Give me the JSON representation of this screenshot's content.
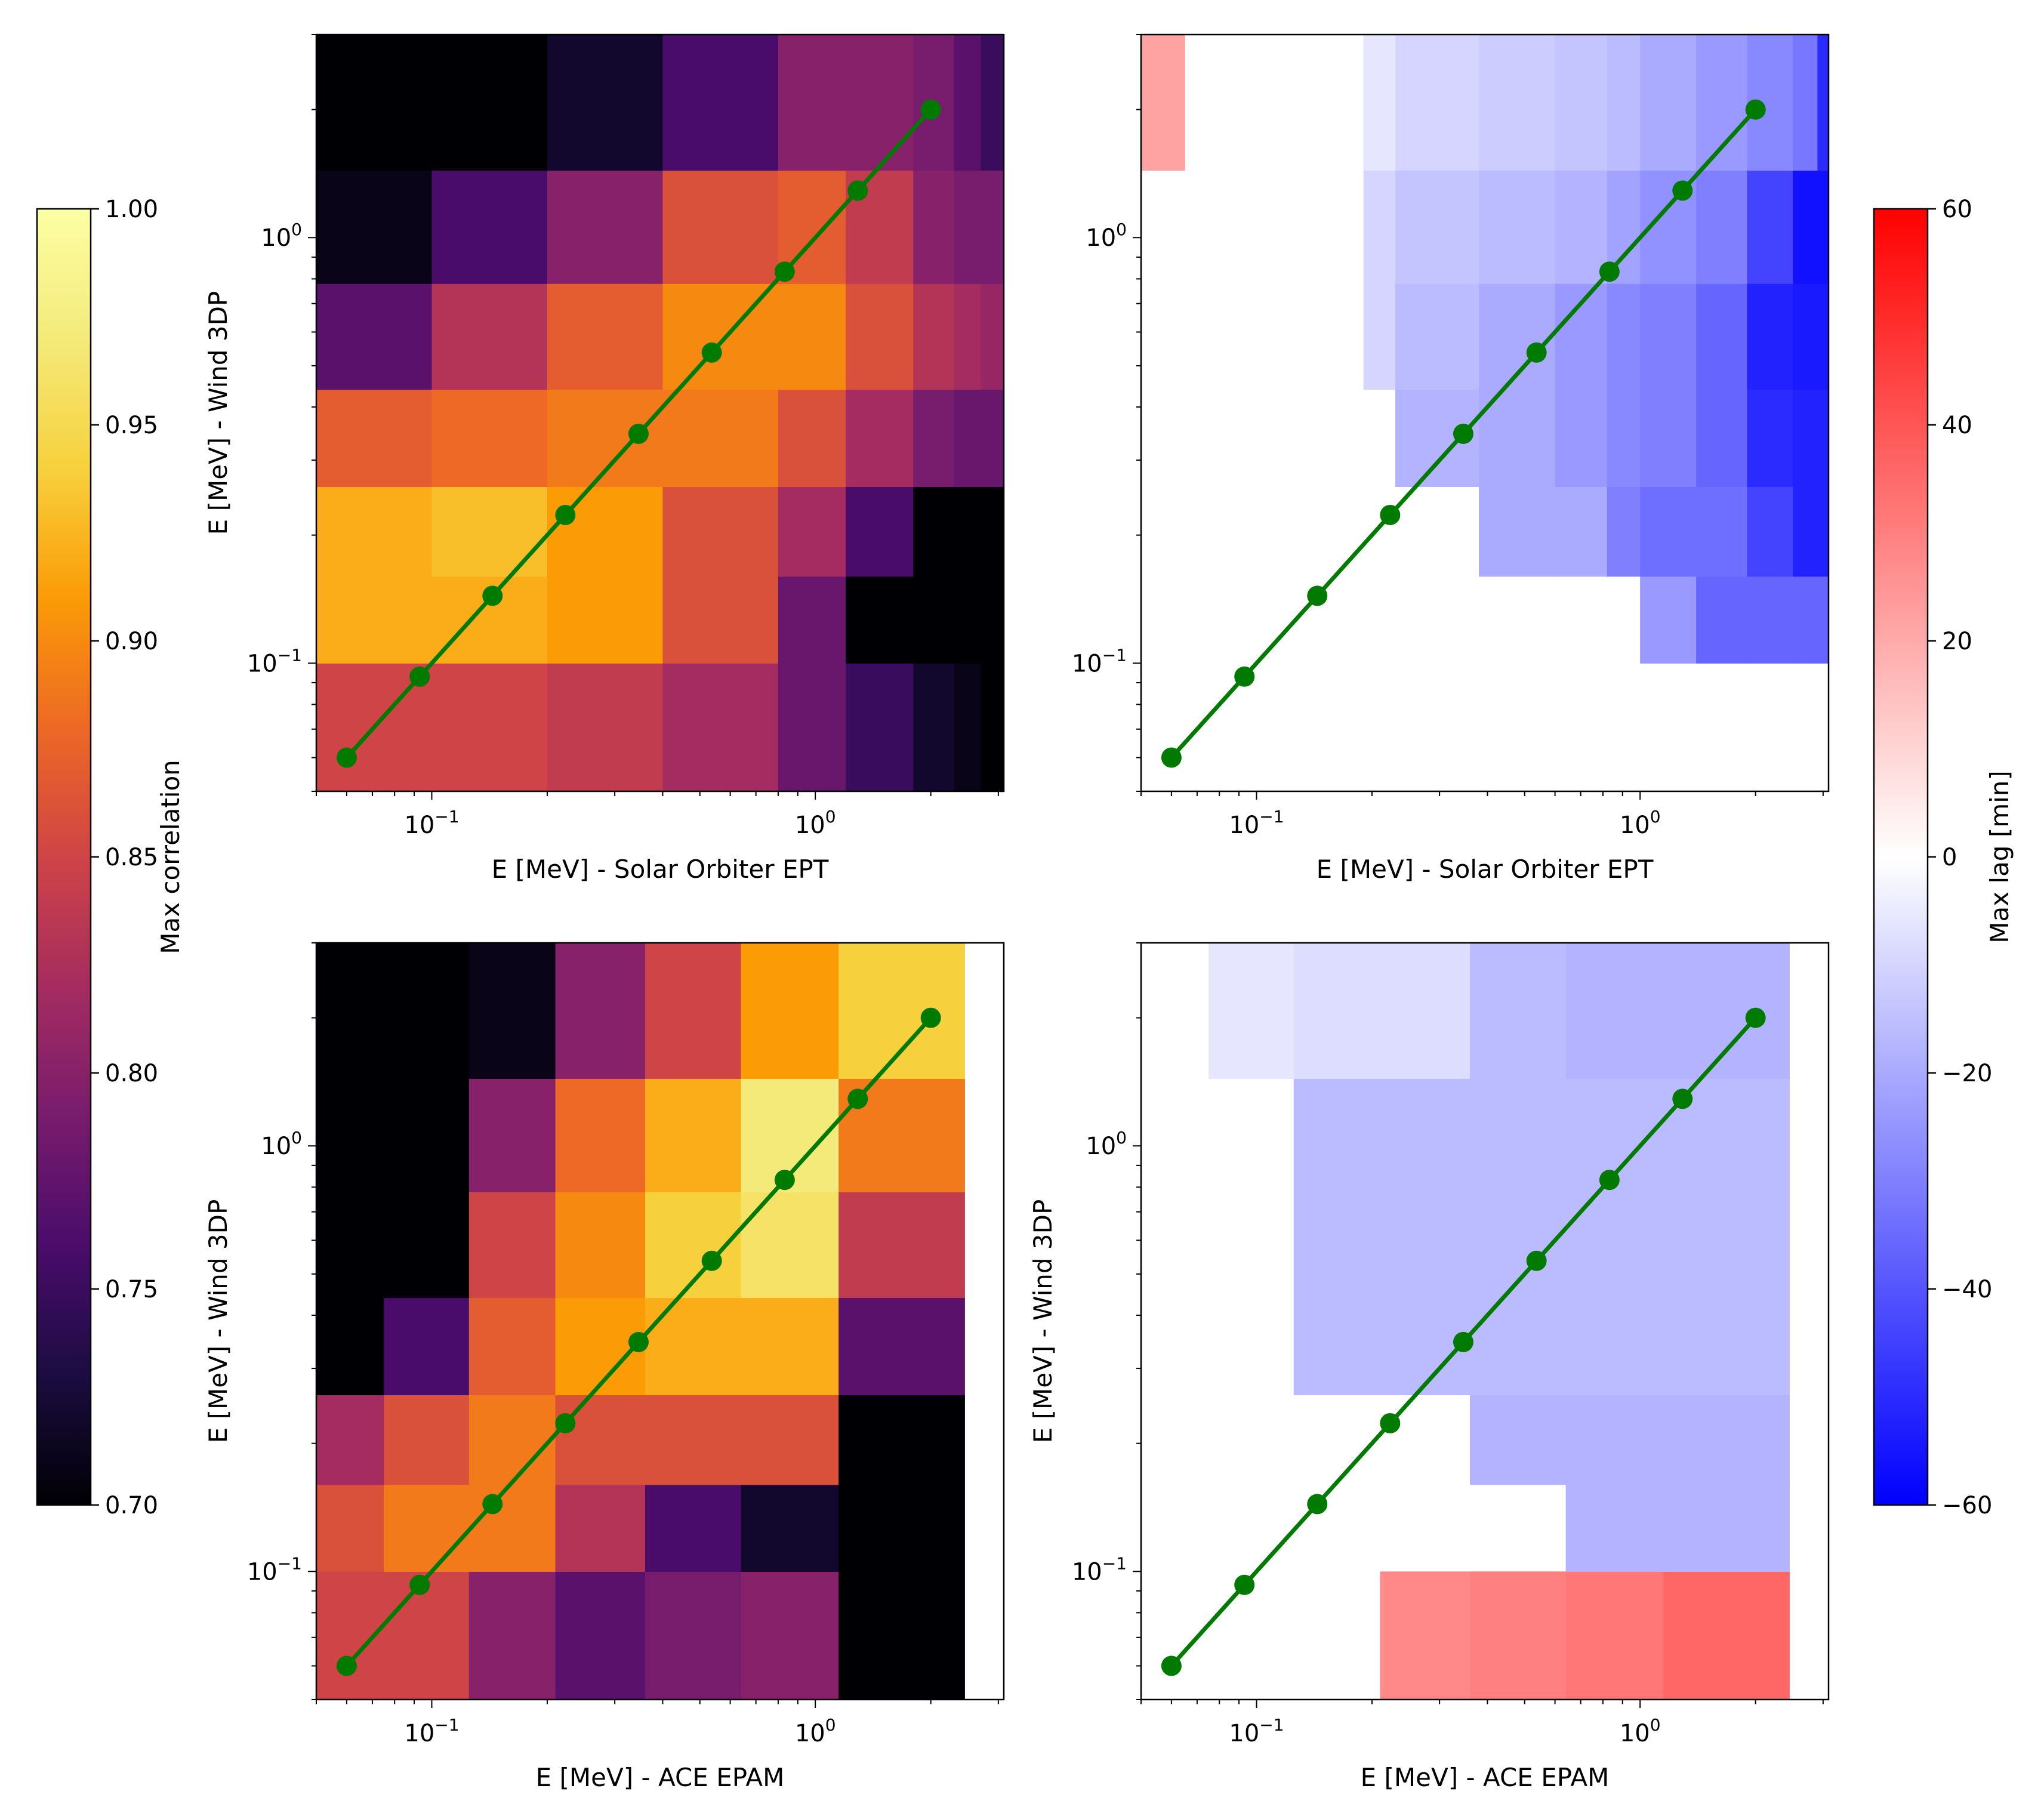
{
  "colorbars": {
    "correlation": {
      "label": "Max correlation",
      "range": [
        0.7,
        1.0
      ],
      "ticks": [
        "0.70",
        "0.75",
        "0.80",
        "0.85",
        "0.90",
        "0.95",
        "1.00"
      ],
      "colormap": "inferno"
    },
    "lag": {
      "label": "Max lag [min]",
      "range": [
        -60,
        60
      ],
      "ticks": [
        "−60",
        "−40",
        "−20",
        "0",
        "20",
        "40",
        "60"
      ],
      "colormap": "bwr"
    }
  },
  "chart_data": [
    {
      "type": "heatmap",
      "panel": "top-left",
      "colorbar": "correlation",
      "xlabel": "E [MeV] - Solar Orbiter EPT",
      "ylabel": "E [MeV] - Wind 3DP",
      "xscale": "log",
      "yscale": "log",
      "xlim": [
        0.05,
        3.1
      ],
      "ylim": [
        0.05,
        3.0
      ],
      "xtick_labels": [
        {
          "v": 0.1,
          "t": "10",
          "e": "−1"
        },
        {
          "v": 1,
          "t": "10",
          "e": "0"
        }
      ],
      "ytick_labels": [
        {
          "v": 0.1,
          "t": "10",
          "e": "−1"
        },
        {
          "v": 1,
          "t": "10",
          "e": "0"
        }
      ],
      "x_edges": [
        0.05,
        0.1,
        0.2,
        0.4,
        0.8,
        1.2,
        1.8,
        2.3,
        2.7,
        3.1
      ],
      "y_edges": [
        0.05,
        0.1,
        0.16,
        0.26,
        0.44,
        0.78,
        1.44,
        3.0
      ],
      "values": [
        [
          0.85,
          0.85,
          0.84,
          0.82,
          0.78,
          0.75,
          0.72,
          0.71,
          0.7
        ],
        [
          0.92,
          0.92,
          0.91,
          0.86,
          0.78,
          0.7,
          0.7,
          0.7,
          0.7
        ],
        [
          0.92,
          0.93,
          0.91,
          0.86,
          0.82,
          0.76,
          0.7,
          0.7,
          0.7
        ],
        [
          0.87,
          0.88,
          0.89,
          0.89,
          0.86,
          0.82,
          0.79,
          0.78,
          0.78
        ],
        [
          0.77,
          0.83,
          0.87,
          0.9,
          0.9,
          0.86,
          0.83,
          0.82,
          0.81
        ],
        [
          0.71,
          0.76,
          0.8,
          0.86,
          0.87,
          0.84,
          0.8,
          0.79,
          0.79
        ],
        [
          0.7,
          0.7,
          0.72,
          0.76,
          0.8,
          0.8,
          0.79,
          0.77,
          0.75
        ]
      ],
      "line": {
        "x": [
          0.06,
          0.093,
          0.144,
          0.223,
          0.346,
          0.537,
          0.832,
          1.29,
          2.0
        ],
        "y": [
          0.06,
          0.093,
          0.144,
          0.223,
          0.346,
          0.537,
          0.832,
          1.29,
          2.0
        ],
        "color": "#007a00"
      }
    },
    {
      "type": "heatmap",
      "panel": "top-right",
      "colorbar": "lag",
      "xlabel": "E [MeV] - Solar Orbiter EPT",
      "ylabel": "",
      "xscale": "log",
      "yscale": "log",
      "xlim": [
        0.05,
        3.1
      ],
      "ylim": [
        0.05,
        3.0
      ],
      "xtick_labels": [
        {
          "v": 0.1,
          "t": "10",
          "e": "−1"
        },
        {
          "v": 1,
          "t": "10",
          "e": "0"
        }
      ],
      "ytick_labels": [
        {
          "v": 0.1,
          "t": "10",
          "e": "−1"
        },
        {
          "v": 1,
          "t": "10",
          "e": "0"
        }
      ],
      "x_edges": [
        0.05,
        0.065,
        0.15,
        0.19,
        0.23,
        0.38,
        0.6,
        0.82,
        1.0,
        1.4,
        1.9,
        2.5,
        2.9,
        3.1
      ],
      "y_edges": [
        0.05,
        0.1,
        0.16,
        0.26,
        0.44,
        0.78,
        1.44,
        3.0
      ],
      "values": [
        [
          null,
          null,
          null,
          null,
          null,
          null,
          null,
          null,
          null,
          null,
          null,
          null,
          null
        ],
        [
          null,
          null,
          null,
          null,
          null,
          null,
          null,
          null,
          -24,
          -36,
          -36,
          -36,
          -36
        ],
        [
          null,
          null,
          null,
          null,
          null,
          -20,
          -20,
          -30,
          -34,
          -34,
          -44,
          -52,
          -52
        ],
        [
          null,
          null,
          null,
          null,
          -18,
          -20,
          -24,
          -28,
          -30,
          -36,
          -50,
          -52,
          -52
        ],
        [
          null,
          null,
          null,
          -10,
          -16,
          -20,
          -24,
          -28,
          -30,
          -36,
          -52,
          -54,
          -54
        ],
        [
          null,
          null,
          null,
          -10,
          -14,
          -16,
          -18,
          -22,
          -26,
          -30,
          -44,
          -56,
          -56
        ],
        [
          22,
          null,
          null,
          -6,
          -10,
          -12,
          -14,
          -16,
          -20,
          -24,
          -28,
          -32,
          -50
        ]
      ],
      "line": {
        "x": [
          0.06,
          0.093,
          0.144,
          0.223,
          0.346,
          0.537,
          0.832,
          1.29,
          2.0
        ],
        "y": [
          0.06,
          0.093,
          0.144,
          0.223,
          0.346,
          0.537,
          0.832,
          1.29,
          2.0
        ],
        "color": "#007a00"
      }
    },
    {
      "type": "heatmap",
      "panel": "bottom-left",
      "colorbar": "correlation",
      "xlabel": "E [MeV] - ACE EPAM",
      "ylabel": "E [MeV] - Wind 3DP",
      "xscale": "log",
      "yscale": "log",
      "xlim": [
        0.05,
        3.1
      ],
      "ylim": [
        0.05,
        3.0
      ],
      "xtick_labels": [
        {
          "v": 0.1,
          "t": "10",
          "e": "−1"
        },
        {
          "v": 1,
          "t": "10",
          "e": "0"
        }
      ],
      "ytick_labels": [
        {
          "v": 0.1,
          "t": "10",
          "e": "−1"
        },
        {
          "v": 1,
          "t": "10",
          "e": "0"
        }
      ],
      "x_edges": [
        0.05,
        0.075,
        0.125,
        0.21,
        0.36,
        0.64,
        1.15,
        2.45
      ],
      "y_edges": [
        0.05,
        0.1,
        0.16,
        0.26,
        0.44,
        0.78,
        1.44,
        3.0
      ],
      "values": [
        [
          0.85,
          0.85,
          0.8,
          0.77,
          0.79,
          0.8,
          0.7
        ],
        [
          0.86,
          0.89,
          0.89,
          0.83,
          0.76,
          0.72,
          0.7
        ],
        [
          0.82,
          0.86,
          0.89,
          0.86,
          0.86,
          0.86,
          0.7
        ],
        [
          0.7,
          0.76,
          0.87,
          0.91,
          0.92,
          0.92,
          0.77
        ],
        [
          0.7,
          0.7,
          0.85,
          0.9,
          0.94,
          0.96,
          0.84
        ],
        [
          0.7,
          0.7,
          0.8,
          0.88,
          0.92,
          0.97,
          0.89
        ],
        [
          0.7,
          0.7,
          0.71,
          0.8,
          0.85,
          0.91,
          0.94
        ]
      ],
      "line": {
        "x": [
          0.06,
          0.093,
          0.144,
          0.223,
          0.346,
          0.537,
          0.832,
          1.29,
          2.0
        ],
        "y": [
          0.06,
          0.093,
          0.144,
          0.223,
          0.346,
          0.537,
          0.832,
          1.29,
          2.0
        ],
        "color": "#007a00"
      }
    },
    {
      "type": "heatmap",
      "panel": "bottom-right",
      "colorbar": "lag",
      "xlabel": "E [MeV] - ACE EPAM",
      "ylabel": "E [MeV] - Wind 3DP",
      "xscale": "log",
      "yscale": "log",
      "xlim": [
        0.05,
        3.1
      ],
      "ylim": [
        0.05,
        3.0
      ],
      "xtick_labels": [
        {
          "v": 0.1,
          "t": "10",
          "e": "−1"
        },
        {
          "v": 1,
          "t": "10",
          "e": "0"
        }
      ],
      "ytick_labels": [
        {
          "v": 0.1,
          "t": "10",
          "e": "−1"
        },
        {
          "v": 1,
          "t": "10",
          "e": "0"
        }
      ],
      "x_edges": [
        0.05,
        0.075,
        0.125,
        0.21,
        0.36,
        0.64,
        1.15,
        2.45
      ],
      "y_edges": [
        0.05,
        0.1,
        0.16,
        0.26,
        0.44,
        0.78,
        1.44,
        3.0
      ],
      "values": [
        [
          null,
          null,
          null,
          28,
          30,
          32,
          36
        ],
        [
          null,
          null,
          null,
          null,
          null,
          -18,
          -18
        ],
        [
          null,
          null,
          null,
          null,
          -18,
          -18,
          -18
        ],
        [
          null,
          null,
          -16,
          -16,
          -16,
          -16,
          -16
        ],
        [
          null,
          null,
          -16,
          -16,
          -16,
          -16,
          -16
        ],
        [
          null,
          null,
          -16,
          -16,
          -16,
          -16,
          -16
        ],
        [
          null,
          -6,
          -8,
          -8,
          -16,
          -18,
          -18
        ]
      ],
      "line": {
        "x": [
          0.06,
          0.093,
          0.144,
          0.223,
          0.346,
          0.537,
          0.832,
          1.29,
          2.0
        ],
        "y": [
          0.06,
          0.093,
          0.144,
          0.223,
          0.346,
          0.537,
          0.832,
          1.29,
          2.0
        ],
        "color": "#007a00"
      }
    }
  ]
}
